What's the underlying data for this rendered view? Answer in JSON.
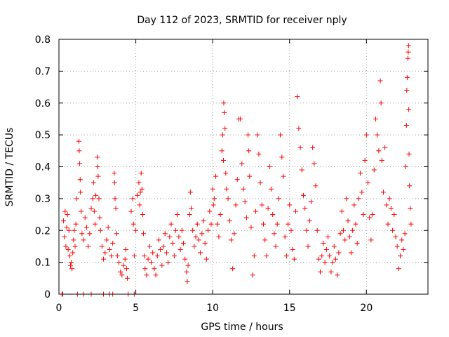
{
  "colors": {
    "series": "#ff0000",
    "background": "#ffffff",
    "grid": "#a0a0a0"
  },
  "chart_data": {
    "type": "scatter",
    "title": "Day 112 of 2023, SRMTID for receiver nply",
    "xlabel": "GPS time / hours",
    "ylabel": "SRMTID / TECUs",
    "xlim": [
      0,
      24
    ],
    "ylim": [
      0,
      0.8
    ],
    "xticks": [
      0,
      5,
      10,
      15,
      20
    ],
    "yticks": [
      0,
      0.1,
      0.2,
      0.3,
      0.4,
      0.5,
      0.6,
      0.7,
      0.8
    ],
    "ytick_labels": [
      "0",
      "0.1",
      "0.2",
      "0.3",
      "0.4",
      "0.5",
      "0.6",
      "0.7",
      "0.8"
    ],
    "grid": true,
    "marker": "+",
    "series": [
      {
        "name": "SRMTID",
        "points": [
          [
            0.2,
            0.0
          ],
          [
            0.25,
            0.0
          ],
          [
            1.2,
            0.0
          ],
          [
            1.6,
            0.0
          ],
          [
            2.1,
            0.0
          ],
          [
            2.9,
            0.0
          ],
          [
            3.3,
            0.0
          ],
          [
            3.5,
            0.0
          ],
          [
            4.5,
            0.0
          ],
          [
            4.9,
            0.0
          ],
          [
            0.3,
            0.23
          ],
          [
            0.35,
            0.18
          ],
          [
            0.4,
            0.26
          ],
          [
            0.45,
            0.15
          ],
          [
            0.5,
            0.21
          ],
          [
            0.55,
            0.25
          ],
          [
            0.6,
            0.14
          ],
          [
            0.65,
            0.2
          ],
          [
            0.7,
            0.12
          ],
          [
            0.75,
            0.09
          ],
          [
            0.8,
            0.1
          ],
          [
            0.85,
            0.08
          ],
          [
            0.9,
            0.13
          ],
          [
            0.95,
            0.17
          ],
          [
            1.0,
            0.2
          ],
          [
            1.05,
            0.15
          ],
          [
            1.1,
            0.22
          ],
          [
            1.15,
            0.3
          ],
          [
            1.3,
            0.48
          ],
          [
            1.32,
            0.45
          ],
          [
            1.35,
            0.41
          ],
          [
            1.38,
            0.36
          ],
          [
            1.4,
            0.32
          ],
          [
            1.45,
            0.26
          ],
          [
            1.5,
            0.19
          ],
          [
            1.6,
            0.17
          ],
          [
            1.7,
            0.24
          ],
          [
            1.8,
            0.21
          ],
          [
            1.9,
            0.15
          ],
          [
            2.0,
            0.19
          ],
          [
            2.1,
            0.27
          ],
          [
            2.2,
            0.3
          ],
          [
            2.25,
            0.35
          ],
          [
            2.3,
            0.26
          ],
          [
            2.35,
            0.22
          ],
          [
            2.4,
            0.31
          ],
          [
            2.5,
            0.43
          ],
          [
            2.52,
            0.4
          ],
          [
            2.55,
            0.37
          ],
          [
            2.6,
            0.3
          ],
          [
            2.65,
            0.24
          ],
          [
            2.7,
            0.2
          ],
          [
            2.8,
            0.15
          ],
          [
            2.9,
            0.11
          ],
          [
            3.0,
            0.13
          ],
          [
            3.1,
            0.17
          ],
          [
            3.2,
            0.21
          ],
          [
            3.3,
            0.14
          ],
          [
            3.4,
            0.12
          ],
          [
            3.5,
            0.16
          ],
          [
            3.6,
            0.38
          ],
          [
            3.62,
            0.35
          ],
          [
            3.65,
            0.3
          ],
          [
            3.7,
            0.27
          ],
          [
            3.75,
            0.19
          ],
          [
            3.8,
            0.12
          ],
          [
            3.9,
            0.1
          ],
          [
            4.0,
            0.07
          ],
          [
            4.1,
            0.06
          ],
          [
            4.2,
            0.09
          ],
          [
            4.3,
            0.11
          ],
          [
            4.35,
            0.14
          ],
          [
            4.4,
            0.08
          ],
          [
            4.45,
            0.05
          ],
          [
            4.7,
            0.26
          ],
          [
            4.8,
            0.3
          ],
          [
            4.85,
            0.22
          ],
          [
            4.9,
            0.12
          ],
          [
            5.0,
            0.2
          ],
          [
            5.1,
            0.31
          ],
          [
            5.2,
            0.35
          ],
          [
            5.25,
            0.28
          ],
          [
            5.3,
            0.32
          ],
          [
            5.35,
            0.38
          ],
          [
            5.4,
            0.33
          ],
          [
            5.45,
            0.25
          ],
          [
            5.5,
            0.19
          ],
          [
            5.55,
            0.12
          ],
          [
            5.6,
            0.08
          ],
          [
            5.7,
            0.06
          ],
          [
            5.8,
            0.11
          ],
          [
            5.9,
            0.15
          ],
          [
            6.0,
            0.1
          ],
          [
            6.1,
            0.13
          ],
          [
            6.2,
            0.08
          ],
          [
            6.3,
            0.06
          ],
          [
            6.4,
            0.12
          ],
          [
            6.5,
            0.17
          ],
          [
            6.6,
            0.14
          ],
          [
            6.7,
            0.09
          ],
          [
            6.8,
            0.15
          ],
          [
            6.9,
            0.19
          ],
          [
            7.0,
            0.13
          ],
          [
            7.1,
            0.1
          ],
          [
            7.2,
            0.18
          ],
          [
            7.3,
            0.22
          ],
          [
            7.4,
            0.16
          ],
          [
            7.5,
            0.12
          ],
          [
            7.6,
            0.2
          ],
          [
            7.7,
            0.25
          ],
          [
            7.8,
            0.18
          ],
          [
            7.9,
            0.14
          ],
          [
            8.0,
            0.2
          ],
          [
            8.1,
            0.16
          ],
          [
            8.2,
            0.11
          ],
          [
            8.3,
            0.07
          ],
          [
            8.35,
            0.04
          ],
          [
            8.4,
            0.09
          ],
          [
            8.5,
            0.25
          ],
          [
            8.55,
            0.32
          ],
          [
            8.6,
            0.27
          ],
          [
            8.7,
            0.2
          ],
          [
            8.8,
            0.15
          ],
          [
            8.9,
            0.18
          ],
          [
            9.0,
            0.22
          ],
          [
            9.1,
            0.17
          ],
          [
            9.2,
            0.13
          ],
          [
            9.3,
            0.19
          ],
          [
            9.4,
            0.23
          ],
          [
            9.5,
            0.16
          ],
          [
            9.6,
            0.11
          ],
          [
            9.7,
            0.2
          ],
          [
            9.8,
            0.26
          ],
          [
            9.9,
            0.22
          ],
          [
            10.0,
            0.33
          ],
          [
            10.05,
            0.28
          ],
          [
            10.1,
            0.3
          ],
          [
            10.2,
            0.37
          ],
          [
            10.3,
            0.22
          ],
          [
            10.4,
            0.18
          ],
          [
            10.5,
            0.25
          ],
          [
            10.6,
            0.45
          ],
          [
            10.65,
            0.5
          ],
          [
            10.7,
            0.42
          ],
          [
            10.72,
            0.6
          ],
          [
            10.75,
            0.57
          ],
          [
            10.8,
            0.52
          ],
          [
            10.85,
            0.38
          ],
          [
            10.9,
            0.33
          ],
          [
            11.0,
            0.3
          ],
          [
            11.1,
            0.23
          ],
          [
            11.2,
            0.17
          ],
          [
            11.3,
            0.08
          ],
          [
            11.4,
            0.19
          ],
          [
            11.5,
            0.28
          ],
          [
            11.6,
            0.36
          ],
          [
            11.7,
            0.55
          ],
          [
            11.8,
            0.55
          ],
          [
            11.9,
            0.41
          ],
          [
            12.0,
            0.33
          ],
          [
            12.1,
            0.29
          ],
          [
            12.2,
            0.24
          ],
          [
            12.3,
            0.5
          ],
          [
            12.35,
            0.45
          ],
          [
            12.4,
            0.37
          ],
          [
            12.5,
            0.21
          ],
          [
            12.6,
            0.06
          ],
          [
            12.7,
            0.12
          ],
          [
            12.8,
            0.26
          ],
          [
            12.9,
            0.5
          ],
          [
            13.0,
            0.44
          ],
          [
            13.1,
            0.35
          ],
          [
            13.2,
            0.28
          ],
          [
            13.3,
            0.22
          ],
          [
            13.4,
            0.17
          ],
          [
            13.5,
            0.12
          ],
          [
            13.6,
            0.27
          ],
          [
            13.7,
            0.4
          ],
          [
            13.8,
            0.33
          ],
          [
            13.9,
            0.25
          ],
          [
            14.0,
            0.19
          ],
          [
            14.1,
            0.15
          ],
          [
            14.2,
            0.22
          ],
          [
            14.3,
            0.3
          ],
          [
            14.4,
            0.5
          ],
          [
            14.5,
            0.43
          ],
          [
            14.6,
            0.37
          ],
          [
            14.7,
            0.18
          ],
          [
            14.8,
            0.12
          ],
          [
            14.9,
            0.22
          ],
          [
            15.0,
            0.28
          ],
          [
            15.1,
            0.2
          ],
          [
            15.2,
            0.14
          ],
          [
            15.3,
            0.11
          ],
          [
            15.4,
            0.26
          ],
          [
            15.5,
            0.62
          ],
          [
            15.6,
            0.52
          ],
          [
            15.7,
            0.46
          ],
          [
            15.8,
            0.39
          ],
          [
            15.9,
            0.31
          ],
          [
            16.0,
            0.27
          ],
          [
            16.1,
            0.2
          ],
          [
            16.2,
            0.15
          ],
          [
            16.3,
            0.23
          ],
          [
            16.4,
            0.29
          ],
          [
            16.5,
            0.46
          ],
          [
            16.6,
            0.41
          ],
          [
            16.7,
            0.34
          ],
          [
            16.8,
            0.2
          ],
          [
            16.9,
            0.11
          ],
          [
            17.0,
            0.07
          ],
          [
            17.1,
            0.12
          ],
          [
            17.2,
            0.16
          ],
          [
            17.3,
            0.1
          ],
          [
            17.4,
            0.14
          ],
          [
            17.5,
            0.18
          ],
          [
            17.6,
            0.12
          ],
          [
            17.7,
            0.07
          ],
          [
            17.8,
            0.1
          ],
          [
            17.9,
            0.15
          ],
          [
            18.0,
            0.11
          ],
          [
            18.1,
            0.06
          ],
          [
            18.2,
            0.13
          ],
          [
            18.3,
            0.19
          ],
          [
            18.4,
            0.26
          ],
          [
            18.5,
            0.2
          ],
          [
            18.6,
            0.17
          ],
          [
            18.7,
            0.3
          ],
          [
            18.8,
            0.23
          ],
          [
            18.9,
            0.18
          ],
          [
            19.0,
            0.13
          ],
          [
            19.1,
            0.2
          ],
          [
            19.2,
            0.28
          ],
          [
            19.3,
            0.22
          ],
          [
            19.4,
            0.16
          ],
          [
            19.5,
            0.3
          ],
          [
            19.6,
            0.38
          ],
          [
            19.7,
            0.32
          ],
          [
            19.8,
            0.25
          ],
          [
            19.9,
            0.42
          ],
          [
            20.0,
            0.5
          ],
          [
            20.1,
            0.35
          ],
          [
            20.2,
            0.24
          ],
          [
            20.3,
            0.17
          ],
          [
            20.4,
            0.25
          ],
          [
            20.5,
            0.39
          ],
          [
            20.6,
            0.55
          ],
          [
            20.7,
            0.5
          ],
          [
            20.8,
            0.45
          ],
          [
            20.9,
            0.67
          ],
          [
            20.95,
            0.6
          ],
          [
            21.0,
            0.42
          ],
          [
            21.1,
            0.32
          ],
          [
            21.2,
            0.46
          ],
          [
            21.3,
            0.28
          ],
          [
            21.4,
            0.22
          ],
          [
            21.5,
            0.3
          ],
          [
            21.6,
            0.27
          ],
          [
            21.7,
            0.2
          ],
          [
            21.8,
            0.25
          ],
          [
            21.9,
            0.18
          ],
          [
            22.0,
            0.15
          ],
          [
            22.1,
            0.08
          ],
          [
            22.2,
            0.12
          ],
          [
            22.3,
            0.17
          ],
          [
            22.4,
            0.14
          ],
          [
            22.5,
            0.19
          ],
          [
            22.55,
            0.4
          ],
          [
            22.6,
            0.53
          ],
          [
            22.62,
            0.64
          ],
          [
            22.65,
            0.68
          ],
          [
            22.7,
            0.74
          ],
          [
            22.72,
            0.76
          ],
          [
            22.74,
            0.78
          ],
          [
            22.75,
            0.58
          ],
          [
            22.77,
            0.44
          ],
          [
            22.8,
            0.34
          ],
          [
            22.85,
            0.27
          ],
          [
            22.9,
            0.22
          ]
        ]
      }
    ]
  }
}
